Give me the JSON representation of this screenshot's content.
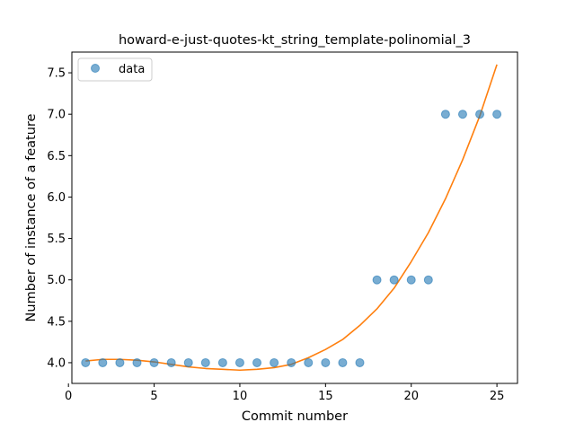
{
  "chart_data": {
    "type": "scatter",
    "title": "howard-e-just-quotes-kt_string_template-polinomial_3",
    "xlabel": "Commit number",
    "ylabel": "Number of instance of a feature",
    "xlim": [
      0.2,
      26.2
    ],
    "ylim": [
      3.75,
      7.75
    ],
    "xticks": [
      0,
      5,
      10,
      15,
      20,
      25
    ],
    "xtick_labels": [
      "0",
      "5",
      "10",
      "15",
      "20",
      "25"
    ],
    "yticks": [
      4.0,
      4.5,
      5.0,
      5.5,
      6.0,
      6.5,
      7.0,
      7.5
    ],
    "ytick_labels": [
      "4.0",
      "4.5",
      "5.0",
      "5.5",
      "6.0",
      "6.5",
      "7.0",
      "7.5"
    ],
    "grid": false,
    "legend_position": "top-left",
    "series": [
      {
        "name": "data",
        "kind": "scatter",
        "color": "#1f77b4",
        "x": [
          1,
          2,
          3,
          4,
          5,
          6,
          7,
          8,
          9,
          10,
          11,
          12,
          13,
          14,
          15,
          16,
          17,
          18,
          19,
          20,
          21,
          22,
          23,
          24,
          25
        ],
        "y": [
          4,
          4,
          4,
          4,
          4,
          4,
          4,
          4,
          4,
          4,
          4,
          4,
          4,
          4,
          4,
          4,
          4,
          5,
          5,
          5,
          5,
          7,
          7,
          7,
          7
        ]
      },
      {
        "kind": "line",
        "color": "#ff7f0e",
        "x": [
          1,
          2,
          3,
          4,
          5,
          6,
          7,
          8,
          9,
          10,
          11,
          12,
          13,
          14,
          15,
          16,
          17,
          18,
          19,
          20,
          21,
          22,
          23,
          24,
          25
        ],
        "y": [
          4.02,
          4.04,
          4.04,
          4.03,
          4.01,
          3.98,
          3.95,
          3.93,
          3.92,
          3.91,
          3.92,
          3.94,
          3.98,
          4.06,
          4.16,
          4.28,
          4.45,
          4.65,
          4.9,
          5.22,
          5.57,
          5.98,
          6.45,
          6.98,
          7.6
        ]
      }
    ]
  }
}
